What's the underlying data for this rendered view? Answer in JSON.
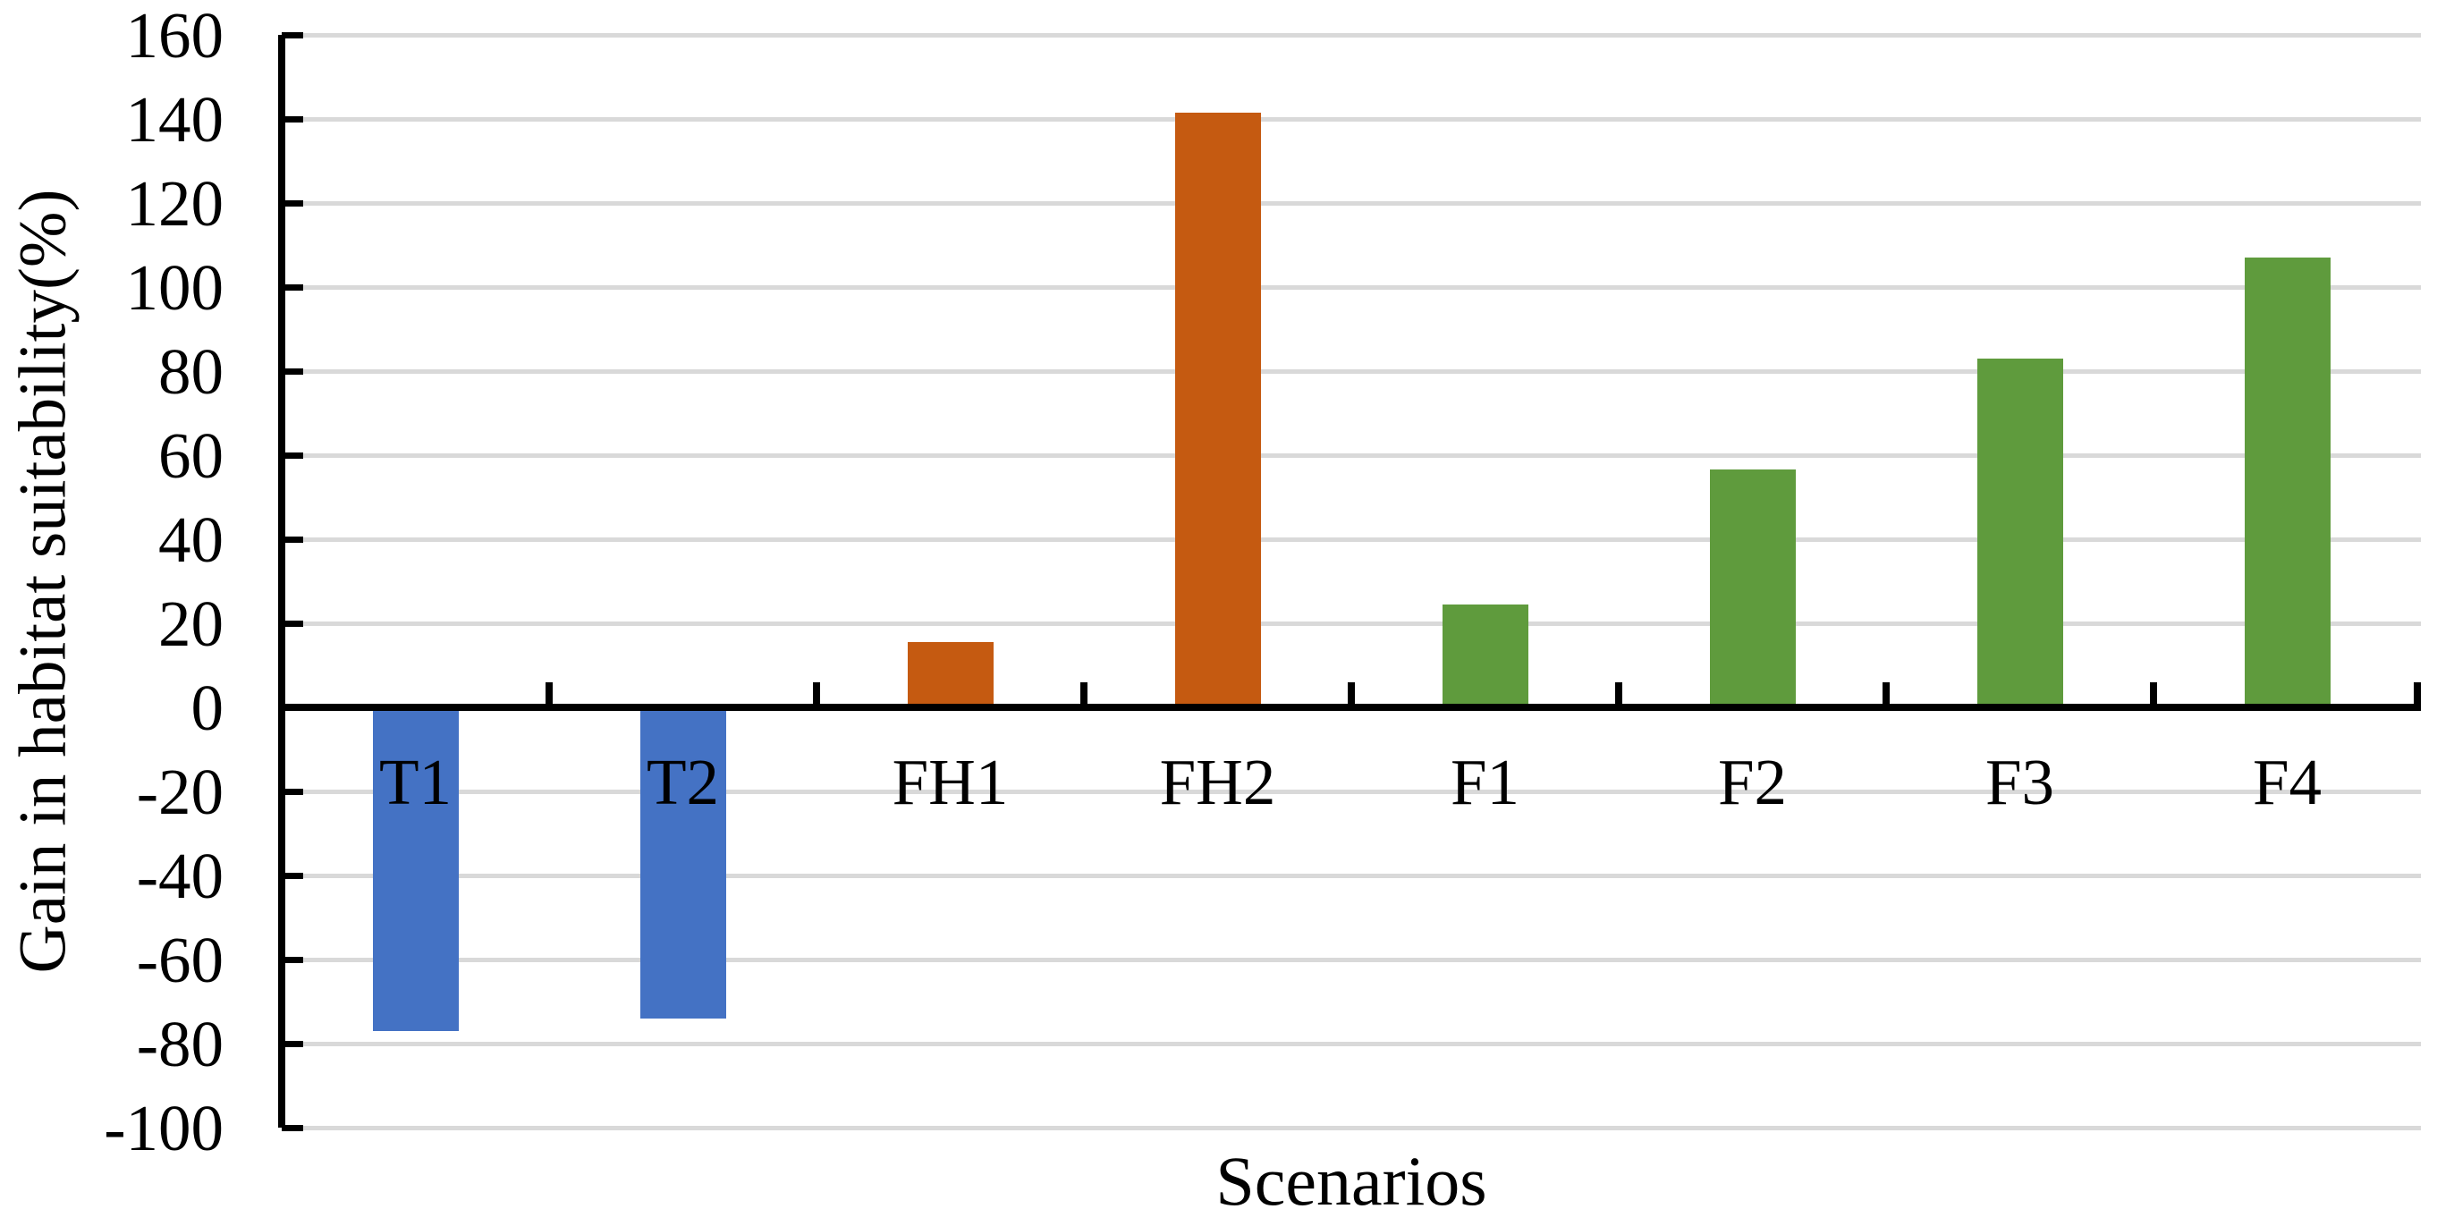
{
  "chart_data": {
    "type": "bar",
    "title": "",
    "xlabel": "Scenarios",
    "ylabel": "Gain in habitat suitability(%)",
    "categories": [
      "T1",
      "T2",
      "FH1",
      "FH2",
      "F1",
      "F2",
      "F3",
      "F4"
    ],
    "values": [
      -77,
      -74,
      15.5,
      141.5,
      24.5,
      56.5,
      83,
      107
    ],
    "series": [
      {
        "name": "Gain in habitat suitability",
        "values": [
          -77,
          -74,
          15.5,
          141.5,
          24.5,
          56.5,
          83,
          107
        ]
      }
    ],
    "bar_colors": [
      "#4472C4",
      "#4472C4",
      "#C55A11",
      "#C55A11",
      "#5F9B3D",
      "#5F9B3D",
      "#5F9B3D",
      "#5F9B3D"
    ],
    "color_groups": {
      "blue": "#4472C4",
      "orange": "#C55A11",
      "green": "#5F9B3D"
    },
    "ylim": [
      -100,
      160
    ],
    "yticks": [
      160,
      140,
      120,
      100,
      80,
      60,
      40,
      20,
      0,
      -20,
      -40,
      -60,
      -80,
      -100
    ],
    "ytick_step": 20,
    "grid": true,
    "gridline_color": "#D9D9D9",
    "axis_color": "#000000",
    "text_color": "#000000",
    "legend_position": "none"
  }
}
